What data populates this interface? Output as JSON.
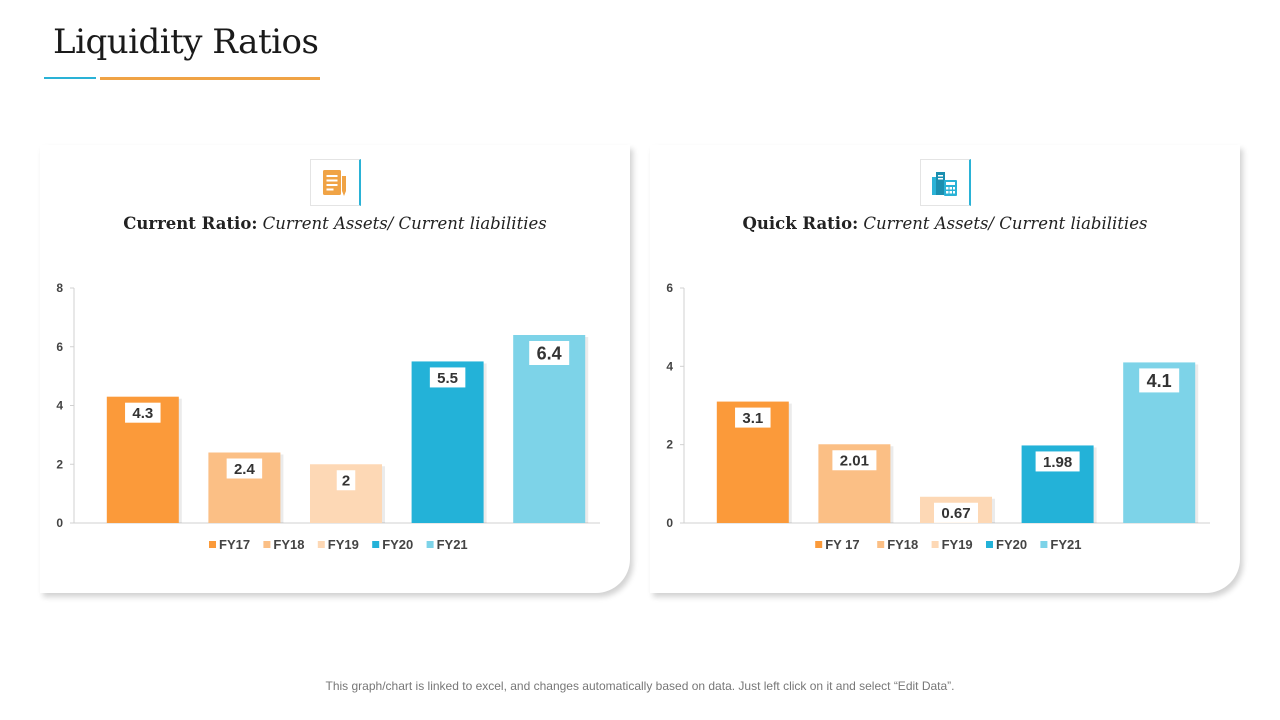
{
  "page": {
    "title": "Liquidity Ratios",
    "footnote": "This graph/chart is linked to excel, and changes automatically based on data. Just left click on it and select “Edit Data”."
  },
  "panels": [
    {
      "icon": "document-pen-icon",
      "heading_bold": "Current Ratio:",
      "heading_italic": " Current Assets/ Current liabilities"
    },
    {
      "icon": "calculator-documents-icon",
      "heading_bold": "Quick Ratio:",
      "heading_italic": " Current Assets/ Current liabilities"
    }
  ],
  "colors": {
    "title_rule_blue": "#2ab2d6",
    "title_rule_orange": "#f0a345",
    "icon_orange": "#f0a345",
    "icon_blue": "#2ab2d6"
  },
  "chart_data": [
    {
      "type": "bar",
      "title": "Current Ratio: Current Assets/ Current liabilities",
      "categories": [
        "FY17",
        "FY18",
        "FY19",
        "FY20",
        "FY21"
      ],
      "values": [
        4.3,
        2.4,
        2,
        5.5,
        6.4
      ],
      "value_labels": [
        "4.3",
        "2.4",
        "2",
        "5.5",
        "6.4"
      ],
      "colors": [
        "#fb9a3a",
        "#fbbf85",
        "#fdd8b5",
        "#23b2d8",
        "#7dd3e8"
      ],
      "legend": [
        "FY17",
        "FY18",
        "FY19",
        "FY20",
        "FY21"
      ],
      "ylim": [
        0,
        8
      ],
      "yticks": [
        0,
        2,
        4,
        6,
        8
      ],
      "legend_position": "bottom"
    },
    {
      "type": "bar",
      "title": "Quick Ratio: Current Assets/ Current liabilities",
      "categories": [
        "FY 17",
        "FY18",
        "FY19",
        "FY20",
        "FY21"
      ],
      "values": [
        3.1,
        2.01,
        0.67,
        1.98,
        4.1
      ],
      "value_labels": [
        "3.1",
        "2.01",
        "0.67",
        "1.98",
        "4.1"
      ],
      "colors": [
        "#fb9a3a",
        "#fbbf85",
        "#fdd8b5",
        "#23b2d8",
        "#7dd3e8"
      ],
      "legend": [
        "FY 17",
        "FY18",
        "FY19",
        "FY20",
        "FY21"
      ],
      "ylim": [
        0,
        6
      ],
      "yticks": [
        0,
        2,
        4,
        6
      ],
      "legend_position": "bottom"
    }
  ]
}
